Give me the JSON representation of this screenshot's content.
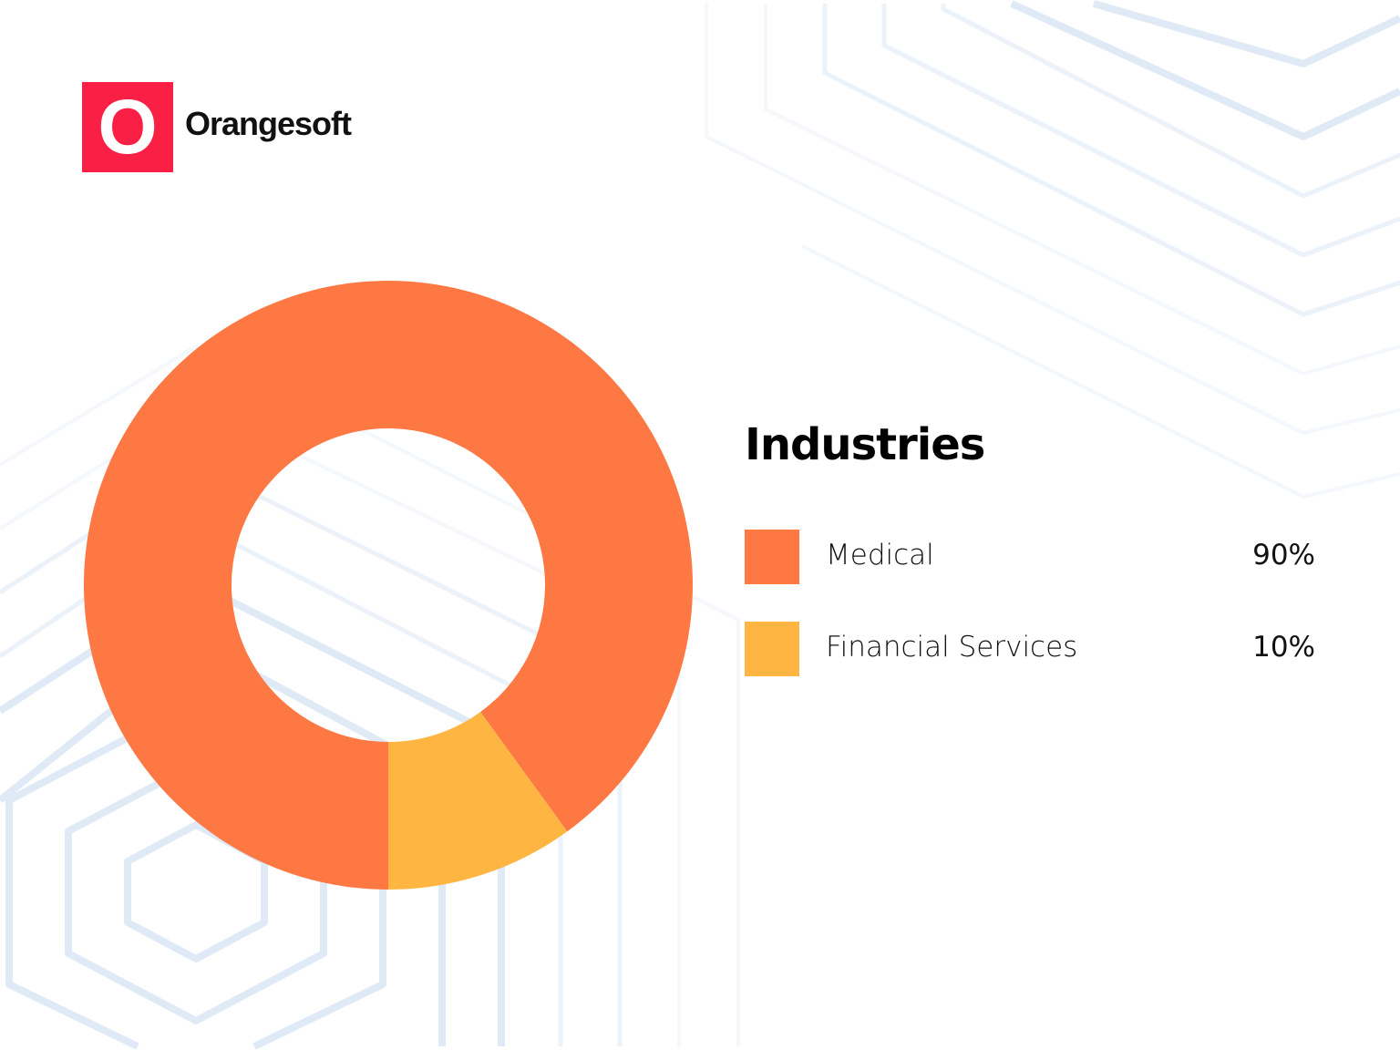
{
  "logo": {
    "mark": "O",
    "name": "Orangesoft",
    "color": "#fa1f44"
  },
  "chart_data": {
    "type": "pie",
    "variant": "donut",
    "title": "Industries",
    "legend_placement": "right",
    "slices": [
      {
        "label": "Medical",
        "value": 90,
        "display": "90%",
        "color": "#fe7844"
      },
      {
        "label": "Financial Services",
        "value": 10,
        "display": "10%",
        "color": "#feb542"
      }
    ]
  }
}
